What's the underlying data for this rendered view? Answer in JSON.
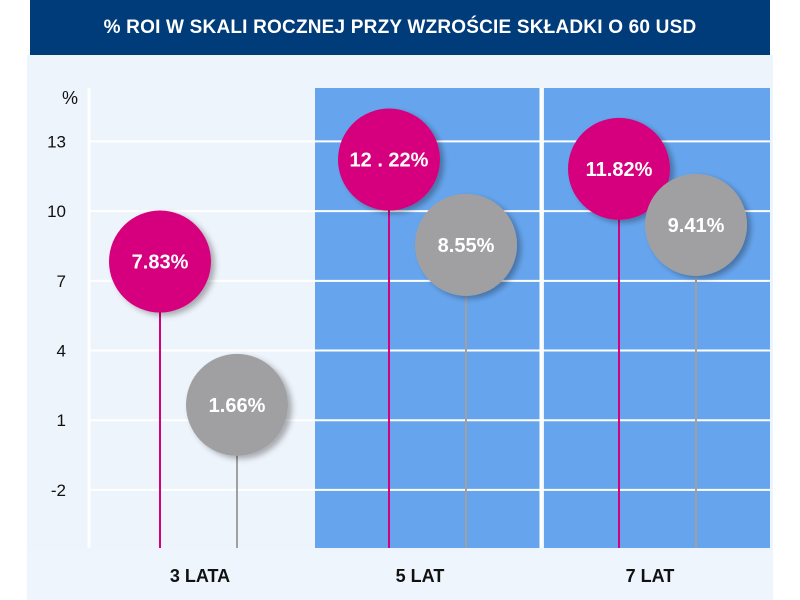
{
  "chart_data": {
    "type": "scatter",
    "title": "% ROI W SKALI ROCZNEJ PRZY WZROŚCIE SKŁADKI O 60 USD",
    "ylabel": "%",
    "yticks": [
      13,
      10,
      7,
      4,
      1,
      -2
    ],
    "ylim": [
      -4.5,
      15.3
    ],
    "grid": true,
    "categories": [
      "3 LATA",
      "5 LAT",
      "7 LAT"
    ],
    "highlighted_categories": [
      "5 LAT",
      "7 LAT"
    ],
    "series": [
      {
        "name": "pink",
        "color": "#D6007E",
        "values": [
          7.83,
          12.22,
          11.82
        ],
        "labels": [
          "7.83%",
          "12 . 22%",
          "11.82%"
        ]
      },
      {
        "name": "gray",
        "color": "#A0A0A3",
        "values": [
          1.66,
          8.55,
          9.41
        ],
        "labels": [
          "1.66%",
          "8.55%",
          "9.41%"
        ]
      }
    ],
    "colors": {
      "header": "#003B7A",
      "highlight": "#66A5EE",
      "panel": "#EEF4FC"
    }
  }
}
